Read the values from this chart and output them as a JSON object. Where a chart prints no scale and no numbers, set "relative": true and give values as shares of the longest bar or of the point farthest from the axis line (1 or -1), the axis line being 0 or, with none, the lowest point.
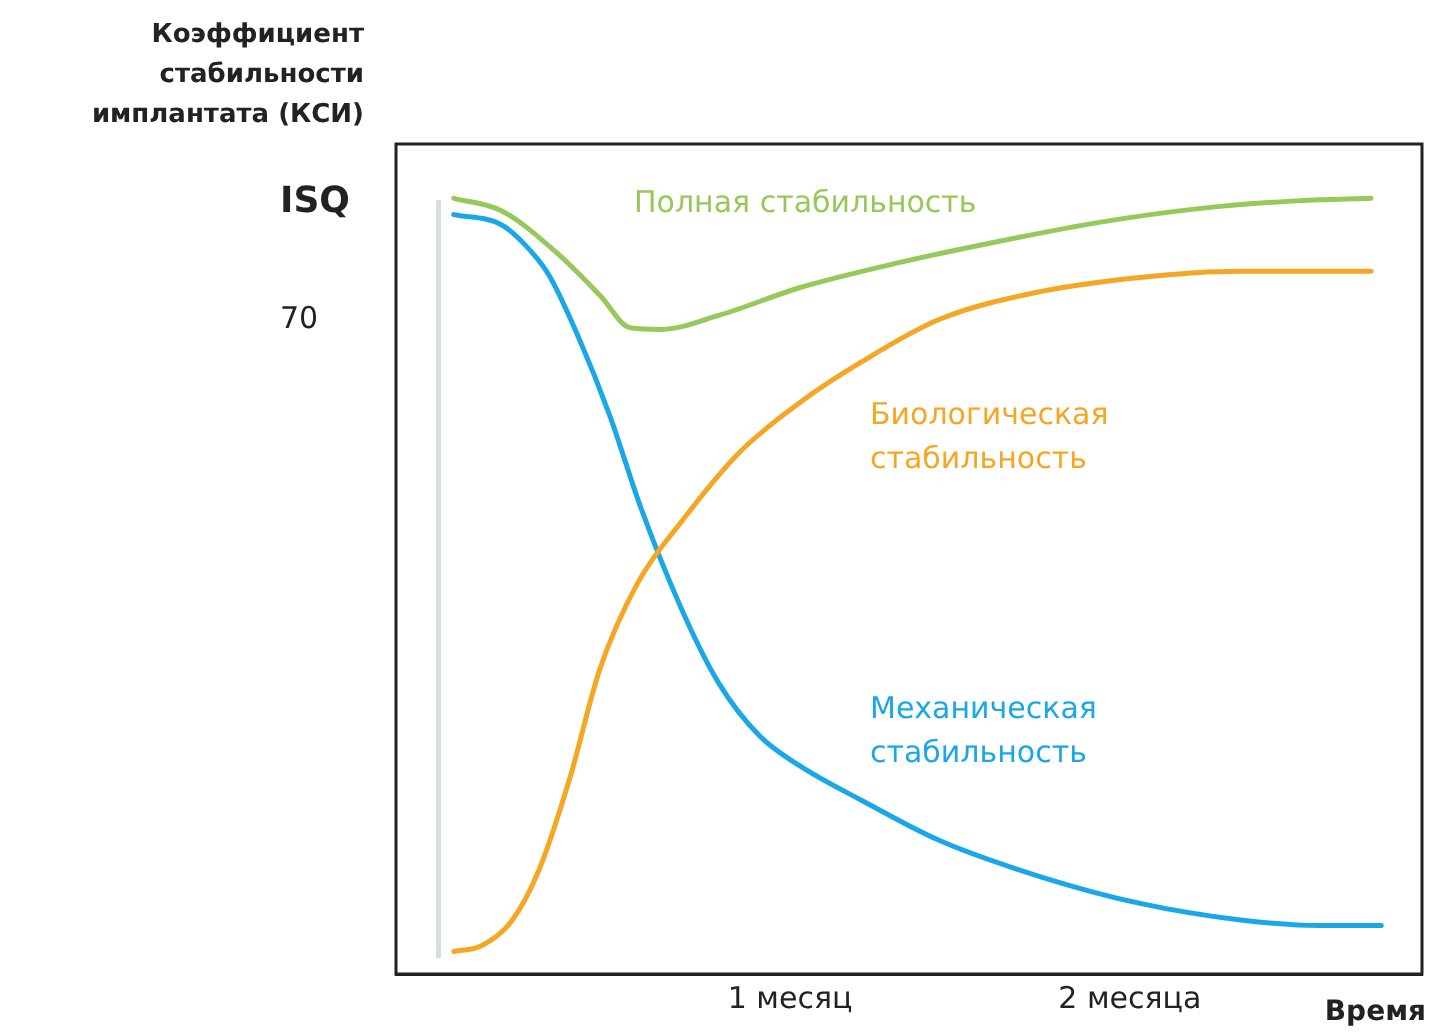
{
  "chart_data": {
    "type": "line",
    "relative": true,
    "ylabel": "Коэффициент стабильности имплантата (КСИ)",
    "xlabel": "Время",
    "annotations": [
      "ISQ",
      "70"
    ],
    "xlim": [
      -0.16,
      2.86
    ],
    "xticks": [
      {
        "value": 1,
        "label": "1 месяц"
      },
      {
        "value": 2,
        "label": "2 месяца"
      }
    ],
    "grid": false,
    "legend": false,
    "marker": "none",
    "line_style": "solid",
    "tick_labels": "x",
    "ref_lines": [
      {
        "axis": "x",
        "value": -0.035,
        "color": "#d5dde5"
      }
    ],
    "series": [
      {
        "name": "Полная стабильность",
        "color": "#96c95a",
        "x": [
          0.01,
          0.15,
          0.32,
          0.44,
          0.53,
          0.62,
          0.79,
          1.03,
          1.32,
          1.62,
          1.91,
          2.21,
          2.5,
          2.71
        ],
        "values": [
          1.0,
          0.984,
          0.927,
          0.875,
          0.833,
          0.831,
          0.849,
          0.885,
          0.917,
          0.945,
          0.969,
          0.987,
          0.997,
          1.0
        ]
      },
      {
        "name": "Биологическая стабильность",
        "color": "#f5a623",
        "x": [
          0.01,
          0.09,
          0.18,
          0.26,
          0.35,
          0.44,
          0.55,
          0.68,
          0.85,
          1.03,
          1.21,
          1.44,
          1.74,
          2.03,
          2.32,
          2.56,
          2.71
        ],
        "values": [
          0.029,
          0.036,
          0.068,
          0.133,
          0.25,
          0.393,
          0.503,
          0.583,
          0.672,
          0.737,
          0.789,
          0.844,
          0.88,
          0.898,
          0.906,
          0.906,
          0.906
        ]
      },
      {
        "name": "Механическая стабильность",
        "color": "#1aa7e8",
        "x": [
          0.01,
          0.15,
          0.22,
          0.29,
          0.38,
          0.47,
          0.56,
          0.68,
          0.79,
          0.91,
          1.03,
          1.21,
          1.44,
          1.74,
          2.03,
          2.32,
          2.56,
          2.74
        ],
        "values": [
          0.979,
          0.966,
          0.94,
          0.901,
          0.818,
          0.719,
          0.602,
          0.471,
          0.375,
          0.307,
          0.268,
          0.224,
          0.172,
          0.125,
          0.091,
          0.07,
          0.0625,
          0.0625
        ]
      }
    ]
  }
}
